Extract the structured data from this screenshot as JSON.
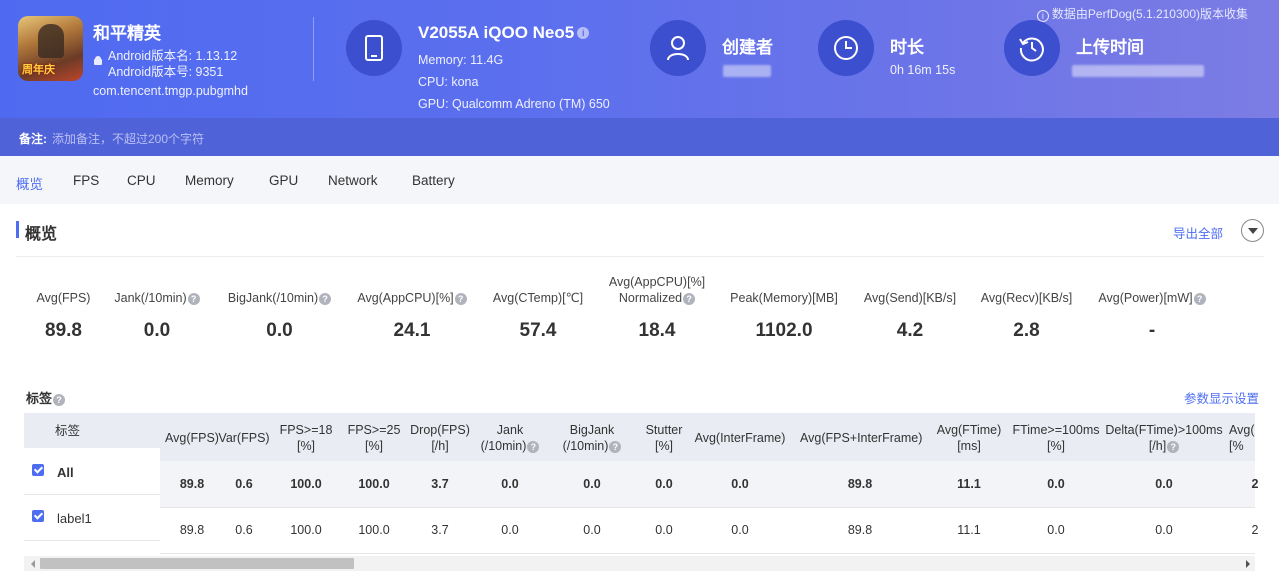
{
  "header": {
    "source_note": "数据由PerfDog(5.1.210300)版本收集",
    "app": {
      "name": "和平精英",
      "badge": "周年庆",
      "android_version_name": "Android版本名: 1.13.12",
      "android_version_code": "Android版本号: 9351",
      "package": "com.tencent.tmgp.pubgmhd"
    },
    "device": {
      "name": "V2055A iQOO Neo5",
      "memory": "Memory: 11.4G",
      "cpu": "CPU: kona",
      "gpu": "GPU: Qualcomm Adreno (TM) 650"
    },
    "creator_label": "创建者",
    "duration_label": "时长",
    "duration_value": "0h 16m 15s",
    "upload_label": "上传时间",
    "note_label": "备注:",
    "note_placeholder": "添加备注，不超过200个字符"
  },
  "tabs": [
    "概览",
    "FPS",
    "CPU",
    "Memory",
    "GPU",
    "Network",
    "Battery"
  ],
  "active_tab": "概览",
  "overview": {
    "title": "概览",
    "export_label": "导出全部",
    "stats": [
      {
        "label": "Avg(FPS)",
        "value": "89.8"
      },
      {
        "label": "Jank(/10min)",
        "value": "0.0"
      },
      {
        "label": "BigJank(/10min)",
        "value": "0.0"
      },
      {
        "label": "Avg(AppCPU)[%]",
        "value": "24.1"
      },
      {
        "label": "Avg(CTemp)[℃]",
        "value": "57.4"
      },
      {
        "label_line1": "Avg(AppCPU)[%]",
        "label_line2": "Normalized",
        "value": "18.4"
      },
      {
        "label": "Peak(Memory)[MB]",
        "value": "1102.0"
      },
      {
        "label": "Avg(Send)[KB/s]",
        "value": "4.2"
      },
      {
        "label": "Avg(Recv)[KB/s]",
        "value": "2.8"
      },
      {
        "label": "Avg(Power)[mW]",
        "value": "-"
      }
    ]
  },
  "tags": {
    "title": "标签",
    "settings_link": "参数显示设置",
    "col_tag": "标签",
    "columns": [
      {
        "l1": "Avg(FPS)",
        "l2": ""
      },
      {
        "l1": "Var(FPS)",
        "l2": ""
      },
      {
        "l1": "FPS>=18",
        "l2": "[%]"
      },
      {
        "l1": "FPS>=25",
        "l2": "[%]"
      },
      {
        "l1": "Drop(FPS)",
        "l2": "[/h]"
      },
      {
        "l1": "Jank",
        "l2": "(/10min)"
      },
      {
        "l1": "BigJank",
        "l2": "(/10min)"
      },
      {
        "l1": "Stutter",
        "l2": "[%]"
      },
      {
        "l1": "Avg(InterFrame)",
        "l2": ""
      },
      {
        "l1": "Avg(FPS+InterFrame)",
        "l2": ""
      },
      {
        "l1": "Avg(FTime)",
        "l2": "[ms]"
      },
      {
        "l1": "FTime>=100ms",
        "l2": "[%]"
      },
      {
        "l1": "Delta(FTime)>100ms",
        "l2": "[/h]"
      },
      {
        "l1": "Avg(",
        "l2": "[%"
      }
    ],
    "rows": [
      {
        "label": "All",
        "checked": true,
        "values": [
          "89.8",
          "0.6",
          "100.0",
          "100.0",
          "3.7",
          "0.0",
          "0.0",
          "0.0",
          "0.0",
          "89.8",
          "11.1",
          "0.0",
          "0.0",
          "2"
        ]
      },
      {
        "label": "label1",
        "checked": true,
        "values": [
          "89.8",
          "0.6",
          "100.0",
          "100.0",
          "3.7",
          "0.0",
          "0.0",
          "0.0",
          "0.0",
          "89.8",
          "11.1",
          "0.0",
          "0.0",
          "2"
        ]
      }
    ]
  }
}
